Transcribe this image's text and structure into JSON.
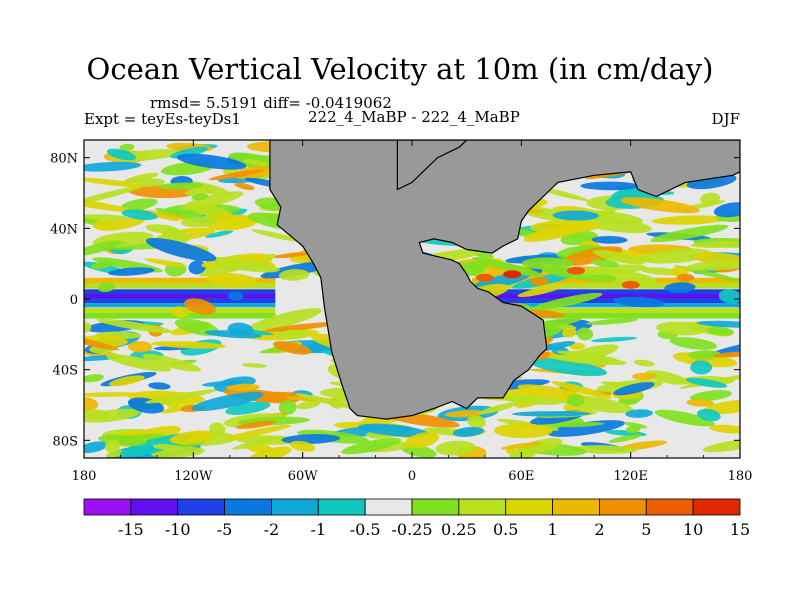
{
  "title": "Ocean Vertical Velocity at 10m (in cm/day)",
  "stats": "rmsd= 5.5191 diff= -0.0419062",
  "experiment": "Expt = teyEs-teyDs1",
  "run_label": "222_4_MaBP - 222_4_MaBP",
  "season": "DJF",
  "colors": {
    "land": "#999999",
    "frame": "#000000",
    "levels": [
      "#9a10f0",
      "#6010ee",
      "#2040e8",
      "#0a78e0",
      "#10a8d8",
      "#10c8c0",
      "#e8e8e8",
      "#80e020",
      "#b8e020",
      "#dcd400",
      "#ecb800",
      "#f09000",
      "#ec5c00",
      "#e02800"
    ]
  },
  "chart_data": {
    "type": "heatmap",
    "title": "Ocean Vertical Velocity at 10m (in cm/day)",
    "xlabel": "",
    "ylabel": "",
    "xlim": [
      -180,
      180
    ],
    "ylim": [
      -90,
      90
    ],
    "x_ticks": [
      {
        "value": -180,
        "label": "180"
      },
      {
        "value": -120,
        "label": "120W"
      },
      {
        "value": -60,
        "label": "60W"
      },
      {
        "value": 0,
        "label": "0"
      },
      {
        "value": 60,
        "label": "60E"
      },
      {
        "value": 120,
        "label": "120E"
      },
      {
        "value": 180,
        "label": "180"
      }
    ],
    "y_ticks": [
      {
        "value": 80,
        "label": "80N"
      },
      {
        "value": 40,
        "label": "40N"
      },
      {
        "value": 0,
        "label": "0"
      },
      {
        "value": -40,
        "label": "40S"
      },
      {
        "value": -80,
        "label": "80S"
      }
    ],
    "colorbar_labels": [
      "-15",
      "-10",
      "-5",
      "-2",
      "-1",
      "-0.5",
      "-0.25",
      "0.25",
      "0.5",
      "1",
      "2",
      "5",
      "10",
      "15"
    ],
    "land_masses": [
      {
        "name": "western-continent",
        "lon_lat": [
          [
            -78,
            90
          ],
          [
            -78,
            62
          ],
          [
            -72,
            52
          ],
          [
            -74,
            42
          ],
          [
            -60,
            30
          ],
          [
            -54,
            20
          ],
          [
            -50,
            12
          ],
          [
            -48,
            -5
          ],
          [
            -44,
            -30
          ],
          [
            -38,
            -50
          ],
          [
            -34,
            -62
          ],
          [
            -30,
            -66
          ],
          [
            -14,
            -68
          ],
          [
            0,
            -66
          ],
          [
            12,
            -62
          ],
          [
            22,
            -58
          ],
          [
            30,
            -62
          ],
          [
            36,
            -56
          ],
          [
            50,
            -56
          ],
          [
            56,
            -46
          ],
          [
            64,
            -40
          ],
          [
            70,
            -32
          ],
          [
            74,
            -28
          ],
          [
            72,
            -12
          ],
          [
            66,
            -8
          ],
          [
            60,
            -4
          ],
          [
            50,
            -2
          ],
          [
            42,
            4
          ],
          [
            36,
            6
          ],
          [
            32,
            10
          ],
          [
            30,
            14
          ],
          [
            26,
            20
          ],
          [
            22,
            22
          ],
          [
            14,
            24
          ],
          [
            6,
            26
          ],
          [
            4,
            32
          ],
          [
            12,
            34
          ],
          [
            22,
            32
          ],
          [
            30,
            28
          ],
          [
            44,
            26
          ],
          [
            50,
            30
          ],
          [
            58,
            34
          ],
          [
            60,
            44
          ],
          [
            64,
            50
          ],
          [
            70,
            56
          ],
          [
            76,
            62
          ],
          [
            80,
            66
          ],
          [
            100,
            70
          ],
          [
            120,
            72
          ],
          [
            124,
            62
          ],
          [
            134,
            58
          ],
          [
            150,
            66
          ],
          [
            176,
            70
          ],
          [
            180,
            72
          ],
          [
            180,
            90
          ]
        ]
      },
      {
        "name": "northern-eastern-continent",
        "lon_lat": [
          [
            -8,
            90
          ],
          [
            -8,
            62
          ],
          [
            0,
            66
          ],
          [
            6,
            72
          ],
          [
            14,
            80
          ],
          [
            26,
            86
          ],
          [
            30,
            90
          ]
        ]
      }
    ]
  }
}
